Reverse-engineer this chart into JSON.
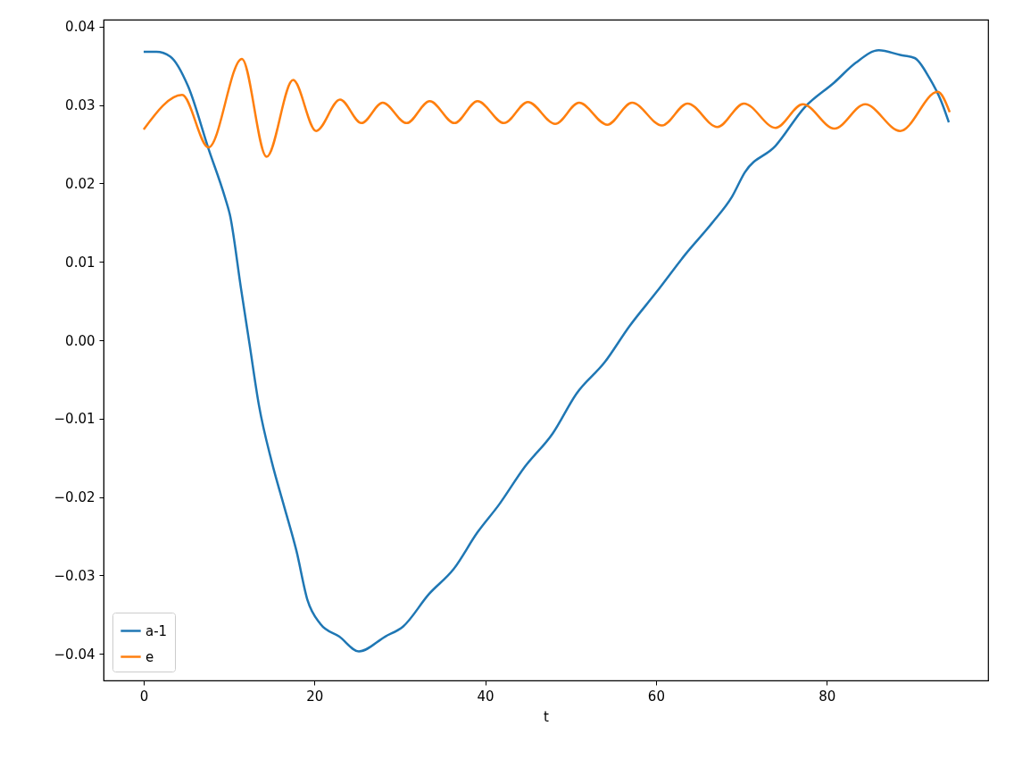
{
  "chart_data": {
    "type": "line",
    "xlabel": "t",
    "xlim": [
      -4.7,
      98.9
    ],
    "ylim": [
      -0.0434,
      0.0409
    ],
    "xticks": [
      0,
      20,
      40,
      60,
      80
    ],
    "yticks": [
      {
        "value": -0.04,
        "label": "−0.04"
      },
      {
        "value": -0.03,
        "label": "−0.03"
      },
      {
        "value": -0.02,
        "label": "−0.02"
      },
      {
        "value": -0.01,
        "label": "−0.01"
      },
      {
        "value": 0,
        "label": "0.00"
      },
      0.01,
      0.02,
      0.03,
      0.04
    ],
    "grid": false,
    "legend": "bottom left",
    "line_style": "solid",
    "marker": "none",
    "series": [
      {
        "name": "a-1",
        "color": "#1f77b4",
        "x": [
          0,
          1.5,
          3.1,
          5.2,
          7.6,
          9.5,
          10.1,
          11.4,
          12.4,
          13.5,
          15,
          16.4,
          17.9,
          19.2,
          20.7,
          22.9,
          25.2,
          28.3,
          30.4,
          33.4,
          36.3,
          39.1,
          41.6,
          44.6,
          47.9,
          50.7,
          54,
          56.9,
          60.1,
          63.4,
          66.6,
          68.9,
          70.4,
          74,
          77.4,
          80.9,
          83.4,
          86.1,
          88.6,
          90.3,
          92,
          93.4,
          94.3
        ],
        "values": [
          0.0368,
          0.0368,
          0.0362,
          0.0324,
          0.0244,
          0.0183,
          0.016,
          0.0066,
          -0.0005,
          -0.0083,
          -0.0155,
          -0.021,
          -0.0269,
          -0.0332,
          -0.0362,
          -0.0378,
          -0.0397,
          -0.0378,
          -0.0365,
          -0.0324,
          -0.0292,
          -0.0245,
          -0.021,
          -0.0162,
          -0.0119,
          -0.0068,
          -0.0028,
          0.0018,
          0.0062,
          0.0109,
          0.015,
          0.0183,
          0.0214,
          0.0248,
          0.0297,
          0.0329,
          0.0354,
          0.037,
          0.0364,
          0.036,
          0.0335,
          0.0305,
          0.0278
        ]
      },
      {
        "name": "e",
        "color": "#ff7f0e",
        "x": [
          0,
          4.5,
          7.6,
          11.5,
          14.4,
          17.5,
          20.2,
          23,
          25.5,
          28,
          30.8,
          33.5,
          36.4,
          39.1,
          42.2,
          45,
          48.2,
          51,
          54.3,
          57.2,
          60.7,
          63.7,
          67.2,
          70.3,
          74,
          77.2,
          80.9,
          84.5,
          88.6,
          93,
          94.4
        ],
        "values": [
          0.0269,
          0.0313,
          0.0246,
          0.0359,
          0.0234,
          0.0332,
          0.0267,
          0.0307,
          0.0277,
          0.0303,
          0.0277,
          0.0305,
          0.0277,
          0.0305,
          0.0277,
          0.0304,
          0.0276,
          0.0303,
          0.0275,
          0.0303,
          0.0274,
          0.0302,
          0.0272,
          0.0302,
          0.0271,
          0.0301,
          0.027,
          0.0301,
          0.0267,
          0.0317,
          0.0291
        ]
      }
    ]
  }
}
